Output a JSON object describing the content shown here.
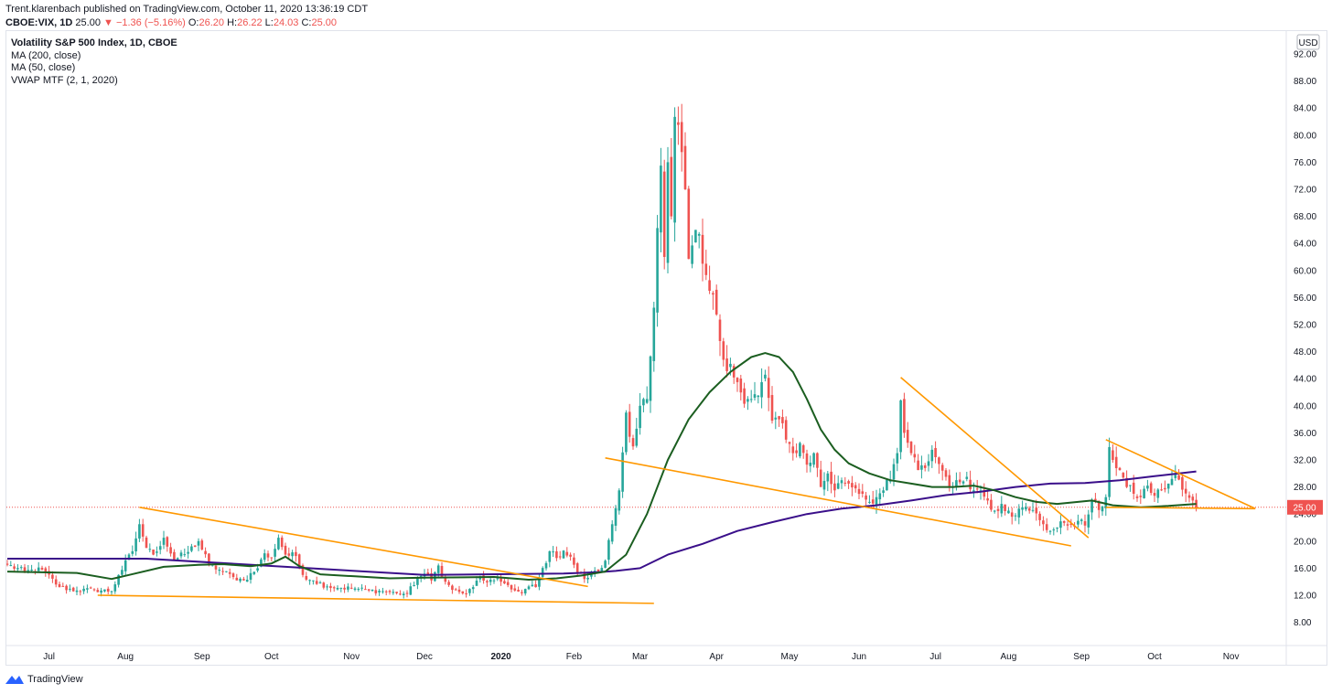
{
  "header": {
    "line1": "Trent.klarenbach published on TradingView.com, October 11, 2020 13:36:19 CDT",
    "symbol": "CBOE:VIX, 1D",
    "last": "25.00",
    "change": "▼ −1.36 (−5.16%)",
    "o_label": "O:",
    "o": "26.20",
    "h_label": "H:",
    "h": "26.22",
    "l_label": "L:",
    "l": "24.03",
    "c_label": "C:",
    "c": "25.00"
  },
  "legend": {
    "title": "Volatility S&P 500 Index, 1D, CBOE",
    "ma200": "MA (200, close)",
    "ma50": "MA (50, close)",
    "vwap": "VWAP MTF (2, 1, 2020)"
  },
  "footer": {
    "brand": "TradingView"
  },
  "colors": {
    "up": "#26a69a",
    "down": "#ef5350",
    "ma200": "#3a0f8a",
    "ma50": "#1b5e20",
    "trendline": "#ff9800",
    "price_line": "#ef5350",
    "price_tag": "#ef5350"
  },
  "chart_data": {
    "type": "candlestick",
    "title": "Volatility S&P 500 Index, 1D, CBOE",
    "ylim": [
      4,
      94
    ],
    "currency": "USD",
    "last_price_label": "25.00",
    "y_ticks": [
      "8.00",
      "12.00",
      "16.00",
      "20.00",
      "24.00",
      "28.00",
      "32.00",
      "36.00",
      "40.00",
      "44.00",
      "48.00",
      "52.00",
      "56.00",
      "60.00",
      "64.00",
      "68.00",
      "72.00",
      "76.00",
      "80.00",
      "84.00",
      "88.00",
      "92.00"
    ],
    "x_ticks": [
      {
        "label": "Jul",
        "idx": 12
      },
      {
        "label": "Aug",
        "idx": 34
      },
      {
        "label": "Sep",
        "idx": 56
      },
      {
        "label": "Oct",
        "idx": 76
      },
      {
        "label": "Nov",
        "idx": 99
      },
      {
        "label": "Dec",
        "idx": 120
      },
      {
        "label": "2020",
        "idx": 142,
        "bold": true
      },
      {
        "label": "Feb",
        "idx": 163
      },
      {
        "label": "Mar",
        "idx": 182
      },
      {
        "label": "Apr",
        "idx": 204
      },
      {
        "label": "May",
        "idx": 225
      },
      {
        "label": "Jun",
        "idx": 245
      },
      {
        "label": "Jul",
        "idx": 267
      },
      {
        "label": "Aug",
        "idx": 288
      },
      {
        "label": "Sep",
        "idx": 309
      },
      {
        "label": "Oct",
        "idx": 330
      },
      {
        "label": "Nov",
        "idx": 352
      }
    ],
    "anchors": [
      [
        0,
        16.5
      ],
      [
        5,
        15.5
      ],
      [
        10,
        15.8
      ],
      [
        15,
        13.2
      ],
      [
        20,
        12.7
      ],
      [
        25,
        12.8
      ],
      [
        30,
        12.6
      ],
      [
        32,
        15
      ],
      [
        36,
        18.5
      ],
      [
        38,
        22.5
      ],
      [
        40,
        19
      ],
      [
        42,
        18
      ],
      [
        45,
        20.5
      ],
      [
        48,
        17.2
      ],
      [
        52,
        18.4
      ],
      [
        55,
        20
      ],
      [
        58,
        16.5
      ],
      [
        62,
        15.5
      ],
      [
        65,
        14.7
      ],
      [
        68,
        14.2
      ],
      [
        72,
        16
      ],
      [
        74,
        18.2
      ],
      [
        76,
        17.5
      ],
      [
        78,
        20.5
      ],
      [
        80,
        18
      ],
      [
        83,
        17.8
      ],
      [
        85,
        15
      ],
      [
        88,
        14.2
      ],
      [
        92,
        13.3
      ],
      [
        96,
        13.1
      ],
      [
        100,
        13
      ],
      [
        104,
        12.7
      ],
      [
        108,
        12.6
      ],
      [
        112,
        12.3
      ],
      [
        115,
        12.2
      ],
      [
        118,
        14.5
      ],
      [
        120,
        15.2
      ],
      [
        122,
        14.2
      ],
      [
        124,
        16.4
      ],
      [
        126,
        14
      ],
      [
        128,
        12.8
      ],
      [
        130,
        12.5
      ],
      [
        132,
        12.2
      ],
      [
        134,
        13.2
      ],
      [
        136,
        14.8
      ],
      [
        138,
        13.9
      ],
      [
        140,
        14.2
      ],
      [
        142,
        14
      ],
      [
        144,
        13.5
      ],
      [
        146,
        12.7
      ],
      [
        148,
        12.3
      ],
      [
        150,
        13.3
      ],
      [
        152,
        13.2
      ],
      [
        156,
        18.5
      ],
      [
        158,
        17.5
      ],
      [
        160,
        18.6
      ],
      [
        162,
        17.7
      ],
      [
        164,
        15.4
      ],
      [
        166,
        14.4
      ],
      [
        168,
        15.1
      ],
      [
        170,
        15.5
      ],
      [
        172,
        17.1
      ],
      [
        174,
        22.5
      ],
      [
        176,
        27.5
      ],
      [
        178,
        39
      ],
      [
        180,
        34
      ],
      [
        182,
        40
      ],
      [
        184,
        41
      ],
      [
        185,
        47.3
      ],
      [
        186,
        54.5
      ],
      [
        188,
        75.5
      ],
      [
        189,
        62
      ],
      [
        190,
        76
      ],
      [
        191,
        68
      ],
      [
        192,
        82.7
      ],
      [
        194,
        77.5
      ],
      [
        195,
        72
      ],
      [
        196,
        61.7
      ],
      [
        197,
        63.7
      ],
      [
        198,
        66
      ],
      [
        200,
        61
      ],
      [
        202,
        57
      ],
      [
        204,
        53.5
      ],
      [
        206,
        46.8
      ],
      [
        208,
        46.2
      ],
      [
        210,
        43.5
      ],
      [
        212,
        40.3
      ],
      [
        214,
        41
      ],
      [
        216,
        41.5
      ],
      [
        218,
        44.6
      ],
      [
        220,
        37.8
      ],
      [
        222,
        38
      ],
      [
        224,
        35
      ],
      [
        226,
        33
      ],
      [
        228,
        34.5
      ],
      [
        230,
        31.3
      ],
      [
        232,
        33
      ],
      [
        234,
        28
      ],
      [
        236,
        30
      ],
      [
        238,
        27.5
      ],
      [
        240,
        29
      ],
      [
        242,
        28.5
      ],
      [
        244,
        27.8
      ],
      [
        246,
        27
      ],
      [
        248,
        25.8
      ],
      [
        250,
        26.5
      ],
      [
        252,
        27.5
      ],
      [
        254,
        29
      ],
      [
        256,
        33
      ],
      [
        257,
        40.8
      ],
      [
        258,
        36
      ],
      [
        260,
        33
      ],
      [
        262,
        30.5
      ],
      [
        264,
        30.8
      ],
      [
        266,
        33.5
      ],
      [
        268,
        31.4
      ],
      [
        270,
        29.5
      ],
      [
        272,
        28
      ],
      [
        274,
        28.7
      ],
      [
        276,
        29.5
      ],
      [
        278,
        27.5
      ],
      [
        280,
        27.5
      ],
      [
        282,
        26
      ],
      [
        284,
        24.5
      ],
      [
        286,
        25.5
      ],
      [
        288,
        24.5
      ],
      [
        290,
        23.8
      ],
      [
        292,
        25
      ],
      [
        294,
        24.5
      ],
      [
        296,
        24.1
      ],
      [
        298,
        22.5
      ],
      [
        300,
        21.5
      ],
      [
        302,
        22
      ],
      [
        304,
        22.7
      ],
      [
        306,
        22.4
      ],
      [
        308,
        23
      ],
      [
        310,
        22.3
      ],
      [
        312,
        26
      ],
      [
        314,
        24.6
      ],
      [
        316,
        26.5
      ],
      [
        317,
        33.9
      ],
      [
        318,
        32
      ],
      [
        320,
        30.5
      ],
      [
        322,
        28
      ],
      [
        324,
        27
      ],
      [
        326,
        26.5
      ],
      [
        328,
        28.2
      ],
      [
        330,
        26.7
      ],
      [
        332,
        27.5
      ],
      [
        334,
        28.5
      ],
      [
        336,
        29.8
      ],
      [
        338,
        27.6
      ],
      [
        340,
        26.4
      ],
      [
        342,
        25
      ]
    ],
    "series": [
      {
        "name": "MA (200, close)",
        "points": [
          [
            0,
            17.4
          ],
          [
            40,
            17.4
          ],
          [
            80,
            16.2
          ],
          [
            120,
            15
          ],
          [
            160,
            15.2
          ],
          [
            170,
            15.4
          ],
          [
            175,
            15.6
          ],
          [
            182,
            16
          ],
          [
            190,
            18
          ],
          [
            200,
            19.6
          ],
          [
            210,
            21.5
          ],
          [
            220,
            22.8
          ],
          [
            230,
            24
          ],
          [
            240,
            24.8
          ],
          [
            250,
            25.3
          ],
          [
            260,
            26
          ],
          [
            270,
            26.8
          ],
          [
            280,
            27.3
          ],
          [
            290,
            28
          ],
          [
            300,
            28.5
          ],
          [
            310,
            28.6
          ],
          [
            320,
            29
          ],
          [
            330,
            29.6
          ],
          [
            342,
            30.3
          ]
        ]
      },
      {
        "name": "MA (50, close)",
        "points": [
          [
            0,
            15.5
          ],
          [
            20,
            15.3
          ],
          [
            30,
            14.4
          ],
          [
            35,
            15
          ],
          [
            45,
            16.2
          ],
          [
            55,
            16.5
          ],
          [
            62,
            16.6
          ],
          [
            70,
            16.3
          ],
          [
            76,
            16.7
          ],
          [
            80,
            17.7
          ],
          [
            84,
            16.3
          ],
          [
            90,
            15.1
          ],
          [
            100,
            14.8
          ],
          [
            110,
            14.5
          ],
          [
            120,
            14.6
          ],
          [
            140,
            14.7
          ],
          [
            150,
            14.3
          ],
          [
            158,
            14.5
          ],
          [
            165,
            14.9
          ],
          [
            172,
            15.5
          ],
          [
            178,
            18
          ],
          [
            184,
            24
          ],
          [
            190,
            32
          ],
          [
            196,
            38
          ],
          [
            202,
            42
          ],
          [
            208,
            45
          ],
          [
            214,
            47.2
          ],
          [
            218,
            47.8
          ],
          [
            222,
            47.2
          ],
          [
            226,
            45
          ],
          [
            230,
            41
          ],
          [
            234,
            36.5
          ],
          [
            238,
            33.5
          ],
          [
            242,
            31.5
          ],
          [
            248,
            30
          ],
          [
            254,
            29
          ],
          [
            260,
            28.5
          ],
          [
            266,
            28
          ],
          [
            272,
            28
          ],
          [
            278,
            28.2
          ],
          [
            284,
            27.5
          ],
          [
            290,
            26.5
          ],
          [
            296,
            25.8
          ],
          [
            302,
            25.5
          ],
          [
            306,
            25.7
          ],
          [
            312,
            26
          ],
          [
            318,
            25.3
          ],
          [
            326,
            25
          ],
          [
            334,
            25.2
          ],
          [
            342,
            25.5
          ]
        ]
      },
      {
        "name": "VWAP MTF (2, 1, 2020)",
        "points": []
      }
    ],
    "trendlines": [
      [
        [
          38,
          25
        ],
        [
          167,
          13.3
        ]
      ],
      [
        [
          26,
          12
        ],
        [
          186,
          10.8
        ]
      ],
      [
        [
          172,
          32.3
        ],
        [
          306,
          19.3
        ]
      ],
      [
        [
          257,
          44.2
        ],
        [
          311,
          20.5
        ]
      ],
      [
        [
          316,
          35
        ],
        [
          359,
          24.8
        ]
      ],
      [
        [
          316,
          25
        ],
        [
          359,
          24.8
        ]
      ]
    ]
  }
}
